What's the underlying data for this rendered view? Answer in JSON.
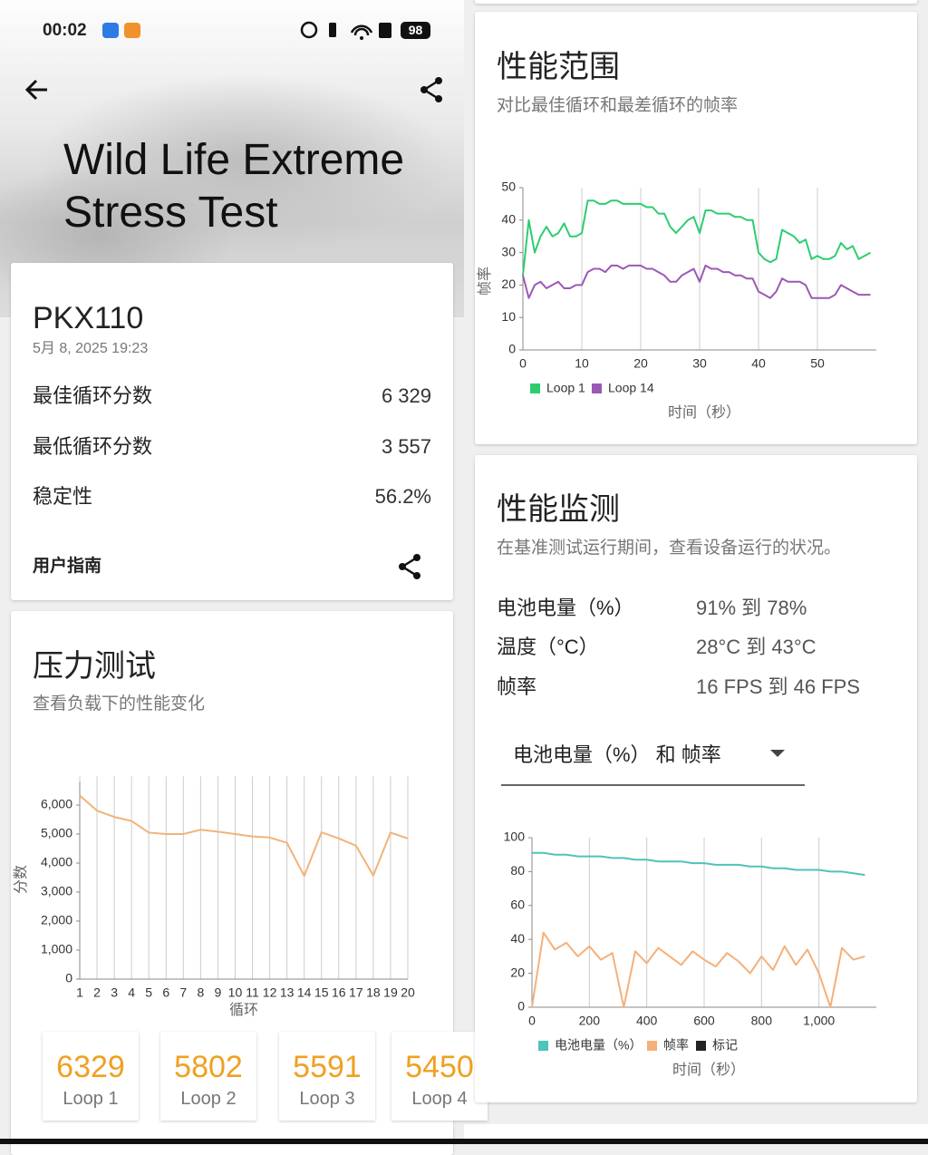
{
  "status_bar": {
    "time": "00:02",
    "battery": "98"
  },
  "header": {
    "title": "Wild Life Extreme Stress Test"
  },
  "device": {
    "name": "PKX110",
    "date": "5月 8, 2025 19:23",
    "rows": [
      {
        "label": "最佳循环分数",
        "value": "6 329"
      },
      {
        "label": "最低循环分数",
        "value": "3 557"
      },
      {
        "label": "稳定性",
        "value": "56.2%"
      }
    ],
    "guide": "用户指南"
  },
  "stress_test": {
    "title": "压力测试",
    "subtitle": "查看负载下的性能变化"
  },
  "score_cards": [
    "Loop 1",
    "Loop 2",
    "Loop 3",
    "Loop 4"
  ],
  "performance_range": {
    "title": "性能范围",
    "subtitle": "对比最佳循环和最差循环的帧率"
  },
  "monitor": {
    "title": "性能监测",
    "subtitle": "在基准测试运行期间，查看设备运行的状况。",
    "rows": [
      {
        "label": "电池电量（%）",
        "value": "91% 到 78%"
      },
      {
        "label": "温度（°C）",
        "value": "28°C 到 43°C"
      },
      {
        "label": "帧率",
        "value": "16 FPS 到 46 FPS"
      }
    ],
    "dropdown": "电池电量（%） 和 帧率"
  },
  "chart_data": [
    {
      "type": "line",
      "y_label": "分数",
      "x_label": "循环",
      "categories": [
        "1",
        "2",
        "3",
        "4",
        "5",
        "6",
        "7",
        "8",
        "9",
        "10",
        "11",
        "12",
        "13",
        "14",
        "15",
        "16",
        "17",
        "18",
        "19",
        "20"
      ],
      "values": [
        6329,
        5802,
        5591,
        5450,
        5050,
        5000,
        5000,
        5150,
        5080,
        5000,
        4920,
        4880,
        4700,
        3557,
        5060,
        4850,
        4600,
        3570,
        5050,
        4850
      ],
      "color": "#f2b379",
      "ylim": [
        0,
        6800
      ],
      "yticks": [
        0,
        {
          "value": 1000,
          "label": "1,000"
        },
        {
          "value": 2000,
          "label": "2,000"
        },
        {
          "value": 3000,
          "label": "3,000"
        },
        {
          "value": 4000,
          "label": "4,000"
        },
        {
          "value": 5000,
          "label": "5,000"
        },
        {
          "value": 6000,
          "label": "6,000"
        }
      ],
      "grid": true
    },
    {
      "type": "line",
      "y_label": "帧率",
      "x_label": "时间（秒）",
      "x": [
        0,
        1,
        2,
        3,
        4,
        5,
        6,
        7,
        8,
        9,
        10,
        11,
        12,
        13,
        14,
        15,
        16,
        17,
        18,
        19,
        20,
        21,
        22,
        23,
        24,
        25,
        26,
        27,
        28,
        29,
        30,
        31,
        32,
        33,
        34,
        35,
        36,
        37,
        38,
        39,
        40,
        41,
        42,
        43,
        44,
        45,
        46,
        47,
        48,
        49,
        50,
        51,
        52,
        53,
        54,
        55,
        56,
        57,
        58,
        59
      ],
      "series": [
        {
          "name": "Loop 1",
          "color": "#2ecc71",
          "values": [
            23,
            40,
            30,
            35,
            38,
            35,
            36,
            39,
            35,
            35,
            36,
            46,
            46,
            45,
            45,
            46,
            46,
            45,
            45,
            45,
            45,
            44,
            44,
            42,
            42,
            38,
            36,
            38,
            40,
            41,
            36,
            43,
            43,
            42,
            42,
            42,
            41,
            41,
            40,
            40,
            30,
            28,
            27,
            28,
            37,
            36,
            35,
            33,
            34,
            28,
            29,
            28,
            28,
            29,
            33,
            31,
            32,
            28,
            29,
            30
          ]
        },
        {
          "name": "Loop 14",
          "color": "#9b59b6",
          "values": [
            23,
            16,
            20,
            21,
            19,
            20,
            21,
            19,
            19,
            20,
            20,
            24,
            25,
            25,
            24,
            26,
            26,
            25,
            26,
            26,
            26,
            25,
            25,
            24,
            23,
            21,
            21,
            23,
            24,
            25,
            21,
            26,
            25,
            25,
            24,
            24,
            23,
            23,
            22,
            22,
            18,
            17,
            16,
            18,
            22,
            21,
            21,
            21,
            20,
            16,
            16,
            16,
            16,
            17,
            20,
            19,
            18,
            17,
            17,
            17
          ]
        }
      ],
      "xlim": [
        0,
        60
      ],
      "xticks": [
        0,
        10,
        20,
        30,
        40,
        50
      ],
      "ylim": [
        0,
        50
      ],
      "yticks": [
        0,
        10,
        20,
        30,
        40,
        50
      ],
      "grid": true
    },
    {
      "type": "line",
      "x_label": "时间（秒）",
      "x": [
        0,
        40,
        80,
        120,
        160,
        200,
        240,
        280,
        320,
        360,
        400,
        440,
        480,
        520,
        560,
        600,
        640,
        680,
        720,
        760,
        800,
        840,
        880,
        920,
        960,
        1000,
        1040,
        1080,
        1120,
        1160
      ],
      "series": [
        {
          "name": "电池电量（%）",
          "color": "#4fc3b8",
          "values": [
            91,
            91,
            90,
            90,
            89,
            89,
            89,
            88,
            88,
            87,
            87,
            86,
            86,
            86,
            85,
            85,
            84,
            84,
            84,
            83,
            83,
            82,
            82,
            81,
            81,
            81,
            80,
            80,
            79,
            78
          ]
        },
        {
          "name": "帧率",
          "color": "#f5b07a",
          "values": [
            0,
            44,
            34,
            38,
            30,
            36,
            28,
            32,
            0,
            33,
            26,
            35,
            30,
            25,
            33,
            28,
            24,
            32,
            27,
            20,
            30,
            22,
            36,
            25,
            34,
            20,
            0,
            35,
            28,
            30
          ]
        }
      ],
      "markers": {
        "name": "标记",
        "color": "#222222"
      },
      "xlim": [
        0,
        1200
      ],
      "xticks": [
        0,
        200,
        400,
        600,
        800,
        {
          "value": 1000,
          "label": "1,000"
        }
      ],
      "ylim": [
        0,
        100
      ],
      "yticks": [
        0,
        20,
        40,
        60,
        80,
        100
      ],
      "grid": true
    }
  ]
}
